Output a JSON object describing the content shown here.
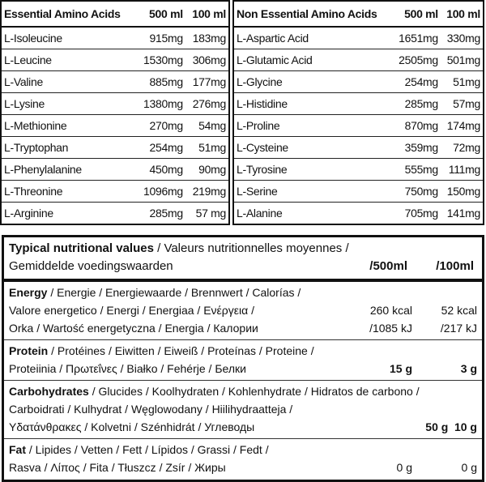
{
  "essential": {
    "headers": [
      "Essential Amino Acids",
      "500 ml",
      "100 ml"
    ],
    "rows": [
      [
        "L-Isoleucine",
        "915mg",
        "183mg"
      ],
      [
        "L-Leucine",
        "1530mg",
        "306mg"
      ],
      [
        "L-Valine",
        "885mg",
        "177mg"
      ],
      [
        "L-Lysine",
        "1380mg",
        "276mg"
      ],
      [
        "L-Methionine",
        "270mg",
        "54mg"
      ],
      [
        "L-Tryptophan",
        "254mg",
        "51mg"
      ],
      [
        "L-Phenylalanine",
        "450mg",
        "90mg"
      ],
      [
        "L-Threonine",
        "1096mg",
        "219mg"
      ],
      [
        "L-Arginine",
        "285mg",
        "57 mg"
      ]
    ]
  },
  "non_essential": {
    "headers": [
      "Non Essential Amino Acids",
      "500 ml",
      "100 ml"
    ],
    "rows": [
      [
        "L-Aspartic Acid",
        "1651mg",
        "330mg"
      ],
      [
        "L-Glutamic Acid",
        "2505mg",
        "501mg"
      ],
      [
        "L-Glycine",
        "254mg",
        "51mg"
      ],
      [
        "L-Histidine",
        "285mg",
        "57mg"
      ],
      [
        "L-Proline",
        "870mg",
        "174mg"
      ],
      [
        "L-Cysteine",
        "359mg",
        "72mg"
      ],
      [
        "L-Tyrosine",
        "555mg",
        "111mg"
      ],
      [
        "L-Serine",
        "750mg",
        "150mg"
      ],
      [
        "L-Alanine",
        "705mg",
        "141mg"
      ]
    ]
  },
  "nutrition": {
    "title_bold": "Typical nutritional values",
    "title_rest": " / Valeurs nutritionnelles moyennes /",
    "title_line2": "Gemiddelde voedingswaarden",
    "col_500": "/500ml",
    "col_100": "/100ml",
    "sections": [
      {
        "name": "Energy",
        "lines": [
          " / Energie / Energiewaarde / Brennwert / Calorías /",
          "Valore energetico / Energi / Energiaa / Ενέργεια /",
          "Orka / Wartość energetyczna / Energia / Калории"
        ],
        "v500": [
          "260 kcal",
          "/1085 kJ"
        ],
        "v100": [
          "52 kcal",
          "/217 kJ"
        ],
        "bold_values": false
      },
      {
        "name": "Protein",
        "lines": [
          " / Protéines / Eiwitten / Eiweiß / Proteínas / Proteine /",
          "Proteiinia / Πρωτεΐνες / Białko / Fehérje / Белки"
        ],
        "v500": [
          "15 g"
        ],
        "v100": [
          "3 g"
        ],
        "bold_values": true
      },
      {
        "name": "Carbohydrates",
        "lines": [
          " / Glucides / Koolhydraten / Kohlenhydrate / Hidratos de carbono /",
          "Carboidrati / Kulhydrat / Węglowodany / Hiilihydraatteja /",
          "Υδατάνθρακες / Kolvetni / Szénhidrát / Углеводы"
        ],
        "v500": [
          "50 g"
        ],
        "v100": [
          "10 g"
        ],
        "bold_values": true
      },
      {
        "name": "Fat",
        "lines": [
          " / Lipides / Vetten / Fett / Lípidos / Grassi / Fedt /",
          "Rasva / Λίπος / Fita / Tłuszcz / Zsír / Жиры"
        ],
        "v500": [
          "0 g"
        ],
        "v100": [
          "0 g"
        ],
        "bold_values": false
      }
    ]
  }
}
